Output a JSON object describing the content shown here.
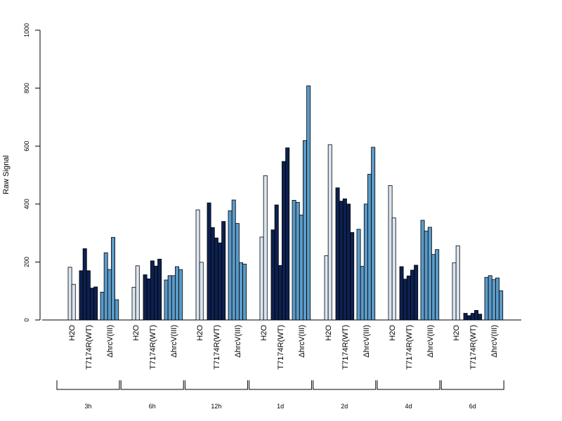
{
  "chart_data": {
    "type": "bar",
    "ylabel": "Raw Signal",
    "ylim": [
      0,
      1000
    ],
    "yticks": [
      0,
      200,
      400,
      600,
      800,
      1000
    ],
    "timepoints": [
      "3h",
      "6h",
      "12h",
      "1d",
      "2d",
      "4d",
      "6d"
    ],
    "treatments": [
      "H2O",
      "T7174R(WT)",
      "ΔhrcV(III)"
    ],
    "colors": {
      "H2O": "#dbe6f3",
      "T7174R(WT)": "#0d2150",
      "ΔhrcV(III)": "#5b9ac8"
    },
    "series": [
      {
        "timepoint": "3h",
        "H2O": [
          182,
          123
        ],
        "T7174R(WT)": [
          170,
          246,
          170,
          110,
          114
        ],
        "ΔhrcV(III)": [
          96,
          232,
          174,
          285,
          70
        ]
      },
      {
        "timepoint": "6h",
        "H2O": [
          113,
          187
        ],
        "T7174R(WT)": [
          156,
          142,
          204,
          186,
          210
        ],
        "ΔhrcV(III)": [
          138,
          153,
          153,
          184,
          174
        ]
      },
      {
        "timepoint": "12h",
        "H2O": [
          380,
          199
        ],
        "T7174R(WT)": [
          404,
          319,
          283,
          266,
          340
        ],
        "ΔhrcV(III)": [
          377,
          414,
          333,
          198,
          193
        ]
      },
      {
        "timepoint": "1d",
        "H2O": [
          286,
          498
        ],
        "T7174R(WT)": [
          311,
          397,
          188,
          547,
          594
        ],
        "ΔhrcV(III)": [
          413,
          406,
          362,
          619,
          808
        ]
      },
      {
        "timepoint": "2d",
        "H2O": [
          222,
          605
        ],
        "T7174R(WT)": [
          456,
          410,
          418,
          400,
          302
        ],
        "ΔhrcV(III)": [
          313,
          185,
          400,
          503,
          596
        ]
      },
      {
        "timepoint": "4d",
        "H2O": [
          464,
          352
        ],
        "T7174R(WT)": [
          184,
          141,
          152,
          172,
          189
        ],
        "ΔhrcV(III)": [
          344,
          307,
          320,
          226,
          243
        ]
      },
      {
        "timepoint": "6d",
        "H2O": [
          197,
          256
        ],
        "T7174R(WT)": [
          23,
          15,
          23,
          33,
          20
        ],
        "ΔhrcV(III)": [
          147,
          153,
          139,
          145,
          101
        ]
      }
    ]
  }
}
